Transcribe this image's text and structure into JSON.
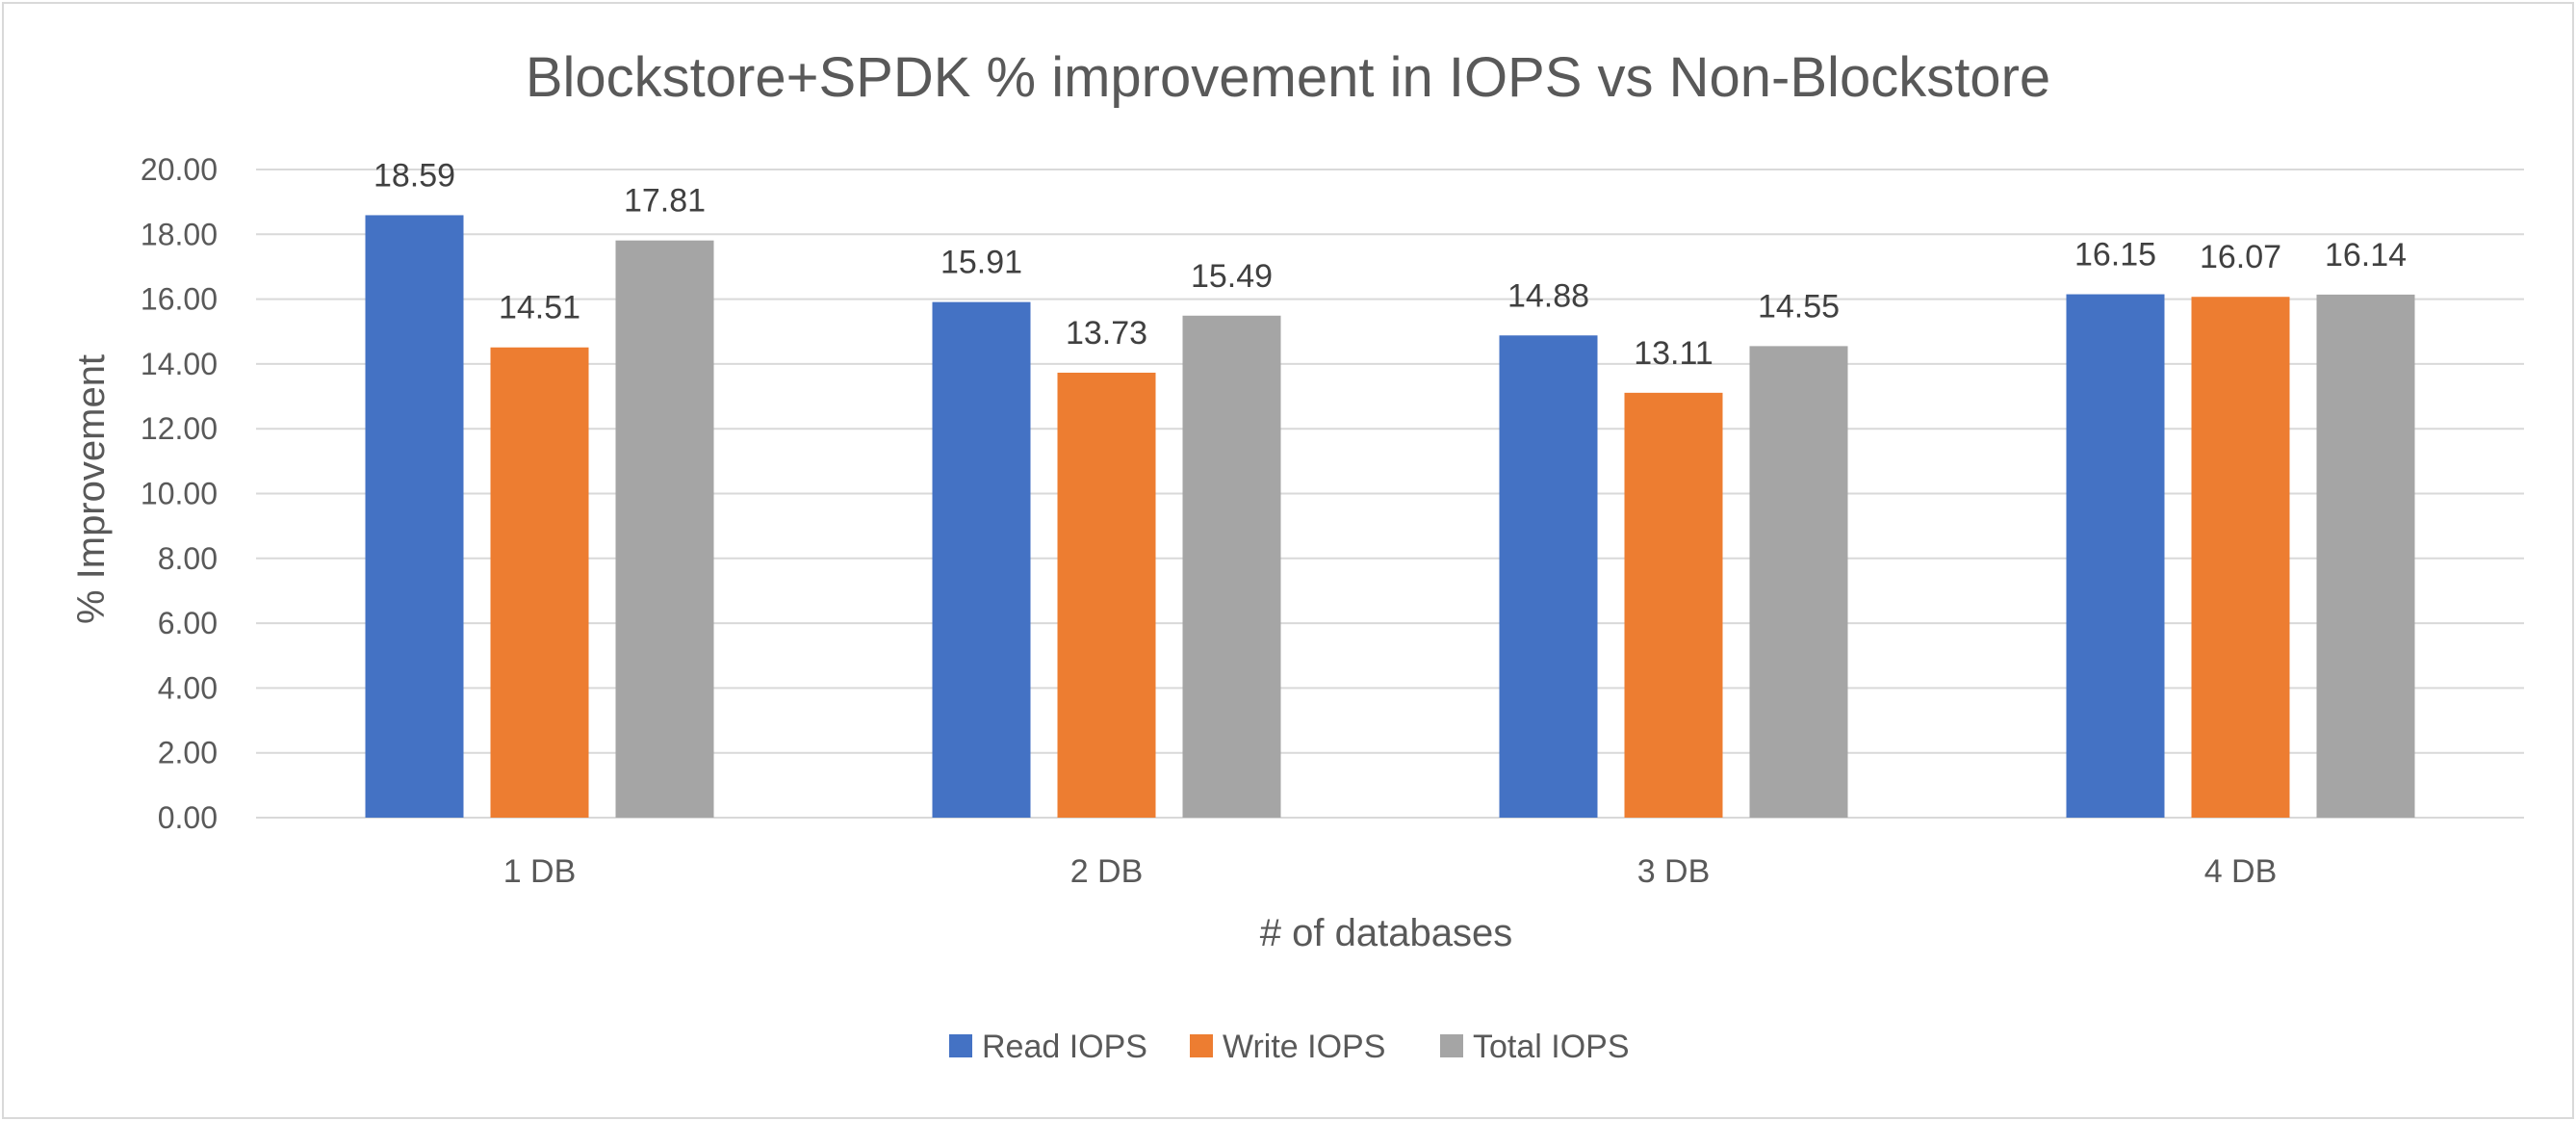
{
  "chart_data": {
    "type": "bar",
    "title": "Blockstore+SPDK % improvement in IOPS vs Non-Blockstore",
    "xlabel": "# of databases",
    "ylabel": "% Improvement",
    "categories": [
      "1 DB",
      "2 DB",
      "3 DB",
      "4 DB"
    ],
    "series": [
      {
        "name": "Read IOPS",
        "color": "#4472C4",
        "values": [
          18.59,
          15.91,
          14.88,
          16.15
        ]
      },
      {
        "name": "Write IOPS",
        "color": "#ED7D31",
        "values": [
          14.51,
          13.73,
          13.11,
          16.07
        ]
      },
      {
        "name": "Total IOPS",
        "color": "#A5A5A5",
        "values": [
          17.81,
          15.49,
          14.55,
          16.14
        ]
      }
    ],
    "ylim": [
      0,
      20
    ],
    "yticks": [
      "0.00",
      "2.00",
      "4.00",
      "6.00",
      "8.00",
      "10.00",
      "12.00",
      "14.00",
      "16.00",
      "18.00",
      "20.00"
    ],
    "grid": true,
    "legend_position": "bottom",
    "data_labels": true
  }
}
